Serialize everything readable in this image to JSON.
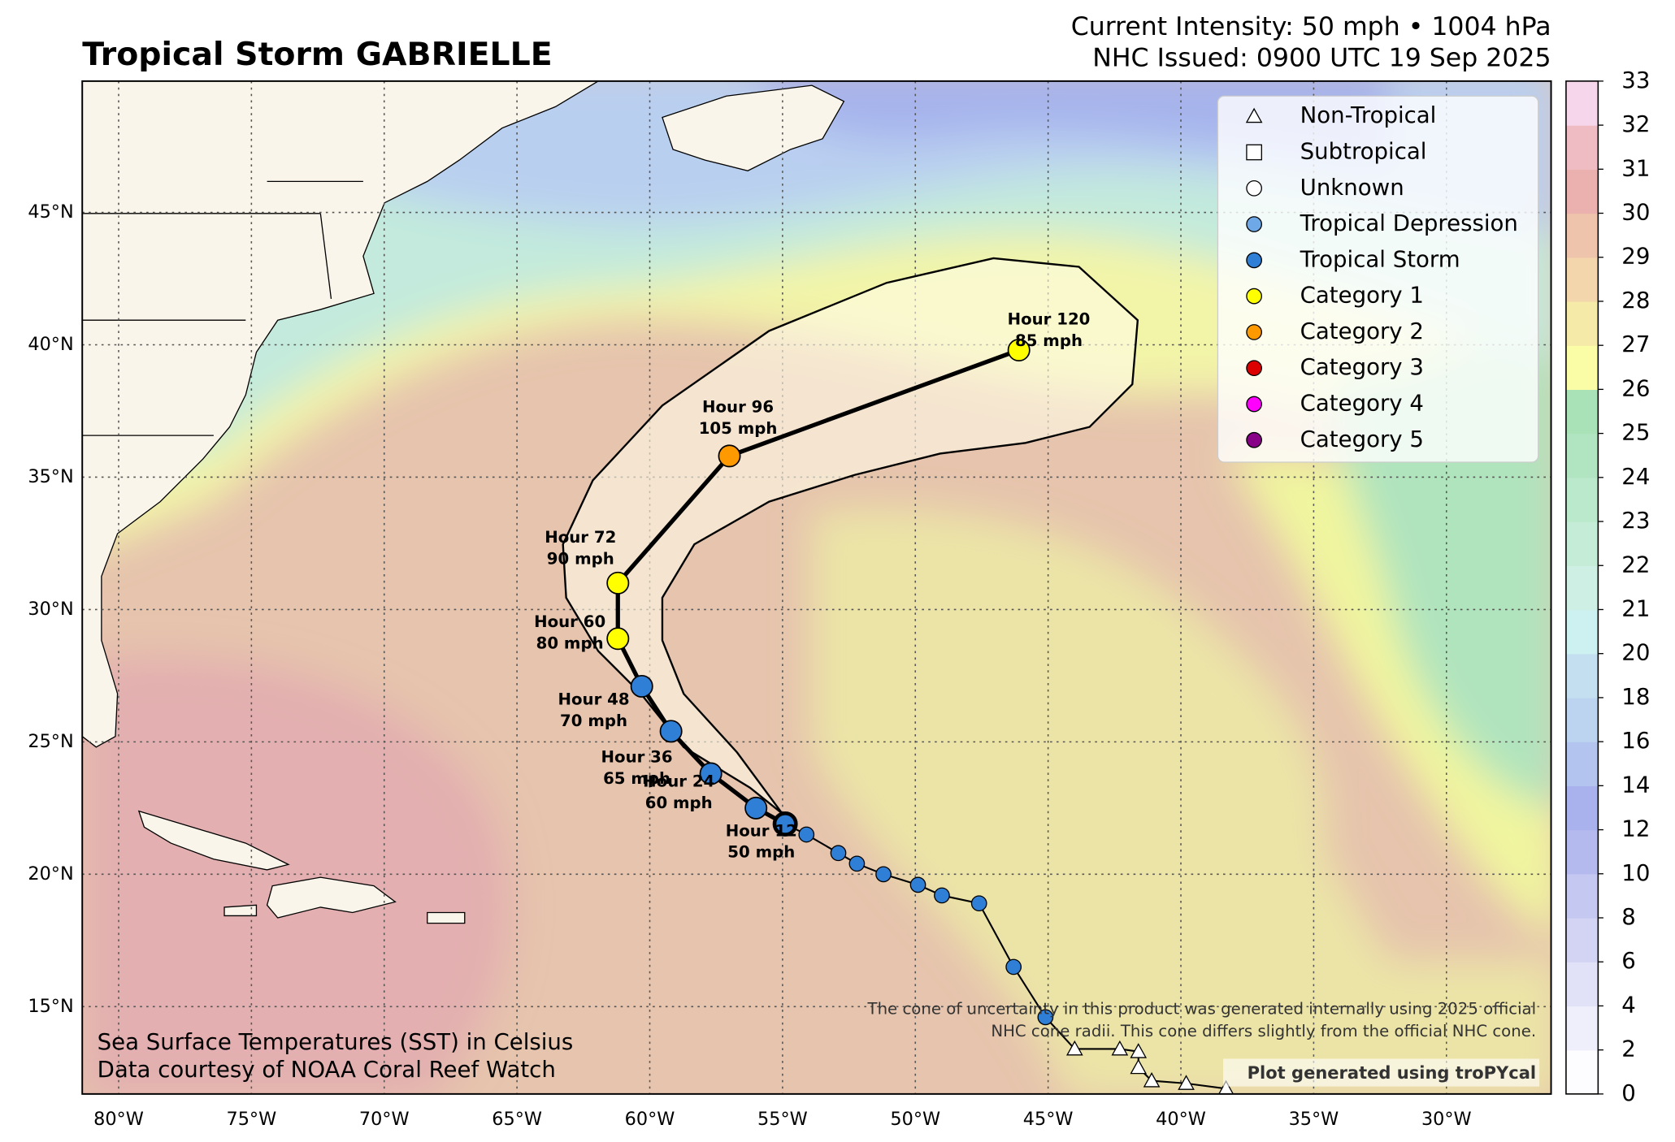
{
  "header": {
    "title": "Tropical Storm GABRIELLE",
    "intensity": "Current Intensity: 50 mph • 1004 hPa",
    "issued": "NHC Issued: 0900 UTC 19 Sep 2025"
  },
  "map": {
    "lon_range": [
      -81.37,
      -26.06
    ],
    "lat_range": [
      11.7,
      49.96
    ],
    "lon_ticks": [
      {
        "value": -80,
        "label": "80°W"
      },
      {
        "value": -75,
        "label": "75°W"
      },
      {
        "value": -70,
        "label": "70°W"
      },
      {
        "value": -65,
        "label": "65°W"
      },
      {
        "value": -60,
        "label": "60°W"
      },
      {
        "value": -55,
        "label": "55°W"
      },
      {
        "value": -50,
        "label": "50°W"
      },
      {
        "value": -45,
        "label": "45°W"
      },
      {
        "value": -40,
        "label": "40°W"
      },
      {
        "value": -35,
        "label": "35°W"
      },
      {
        "value": -30,
        "label": "30°W"
      }
    ],
    "lat_ticks": [
      {
        "value": 15,
        "label": "15°N"
      },
      {
        "value": 20,
        "label": "20°N"
      },
      {
        "value": 25,
        "label": "25°N"
      },
      {
        "value": 30,
        "label": "30°N"
      },
      {
        "value": 35,
        "label": "35°N"
      },
      {
        "value": 40,
        "label": "40°N"
      },
      {
        "value": 45,
        "label": "45°N"
      }
    ]
  },
  "legend": [
    {
      "label": "Non-Tropical",
      "shape": "triangle",
      "color": "#ffffff"
    },
    {
      "label": "Subtropical",
      "shape": "square",
      "color": "#ffffff"
    },
    {
      "label": "Unknown",
      "shape": "circle",
      "color": "#ffffff"
    },
    {
      "label": "Tropical Depression",
      "shape": "circle",
      "color": "#6fa8e6"
    },
    {
      "label": "Tropical Storm",
      "shape": "circle",
      "color": "#2f7fd6"
    },
    {
      "label": "Category 1",
      "shape": "circle",
      "color": "#ffff00"
    },
    {
      "label": "Category 2",
      "shape": "circle",
      "color": "#ff9900"
    },
    {
      "label": "Category 3",
      "shape": "circle",
      "color": "#dd0000"
    },
    {
      "label": "Category 4",
      "shape": "circle",
      "color": "#ff00ff"
    },
    {
      "label": "Category 5",
      "shape": "circle",
      "color": "#880088"
    }
  ],
  "past_track": {
    "lon": [
      -38.3,
      -39.8,
      -41.1,
      -41.6,
      -41.6,
      -42.3,
      -44.0,
      -45.1,
      -46.3,
      -47.6,
      -49.0,
      -49.9,
      -51.2,
      -52.2,
      -52.9,
      -54.1
    ],
    "lat": [
      11.9,
      12.1,
      12.2,
      12.7,
      13.3,
      13.4,
      13.4,
      14.6,
      16.5,
      18.9,
      19.2,
      19.6,
      20.0,
      20.4,
      20.8,
      21.5
    ],
    "legend_index": [
      0,
      0,
      0,
      0,
      0,
      0,
      0,
      4,
      4,
      4,
      4,
      4,
      4,
      4,
      4,
      4
    ]
  },
  "current": {
    "lon": -54.9,
    "lat": 21.9
  },
  "forecast": {
    "lon": [
      -56.0,
      -57.7,
      -59.2,
      -60.3,
      -61.2,
      -61.2,
      -57.0,
      -46.1
    ],
    "lat": [
      22.5,
      23.8,
      25.4,
      27.1,
      28.9,
      31.0,
      35.8,
      39.8
    ],
    "legend_index": [
      4,
      4,
      4,
      4,
      5,
      5,
      6,
      5
    ],
    "hour_labels": [
      "Hour 12",
      "Hour 24",
      "Hour 36",
      "Hour 48",
      "Hour 60",
      "Hour 72",
      "Hour 96",
      "Hour 120"
    ],
    "wind_labels": [
      "50 mph",
      "60 mph",
      "65 mph",
      "70 mph",
      "80 mph",
      "90 mph",
      "105 mph",
      "85 mph"
    ]
  },
  "colorbar": {
    "ticks": [
      0,
      2,
      4,
      6,
      8,
      10,
      12,
      14,
      16,
      18,
      20,
      21,
      22,
      23,
      24,
      25,
      26,
      27,
      28,
      29,
      30,
      31,
      32,
      33
    ],
    "colors": [
      "#fdfdff",
      "#efeffb",
      "#e1e1f7",
      "#d3d4f4",
      "#c5c8f1",
      "#b4b9ee",
      "#a9b2ec",
      "#b3c5ee",
      "#bdd4f0",
      "#c4dff0",
      "#cdf1f1",
      "#cdefe4",
      "#c5ecd6",
      "#bbe9cb",
      "#b1e5c1",
      "#a9e2b7",
      "#fafca6",
      "#f6eaa9",
      "#f3d6ab",
      "#efc4ac",
      "#ebb1ae",
      "#efbcc4",
      "#f6d6ea"
    ]
  },
  "notes": {
    "sst_line1": "Sea Surface Temperatures (SST) in Celsius",
    "sst_line2": "Data courtesy of NOAA Coral Reef Watch",
    "cone_line1": "The cone of uncertainty in this product was generated internally using 2025 official",
    "cone_line2": "NHC cone radii. This cone differs slightly from the official NHC cone.",
    "credit": "Plot generated using troPYcal"
  }
}
